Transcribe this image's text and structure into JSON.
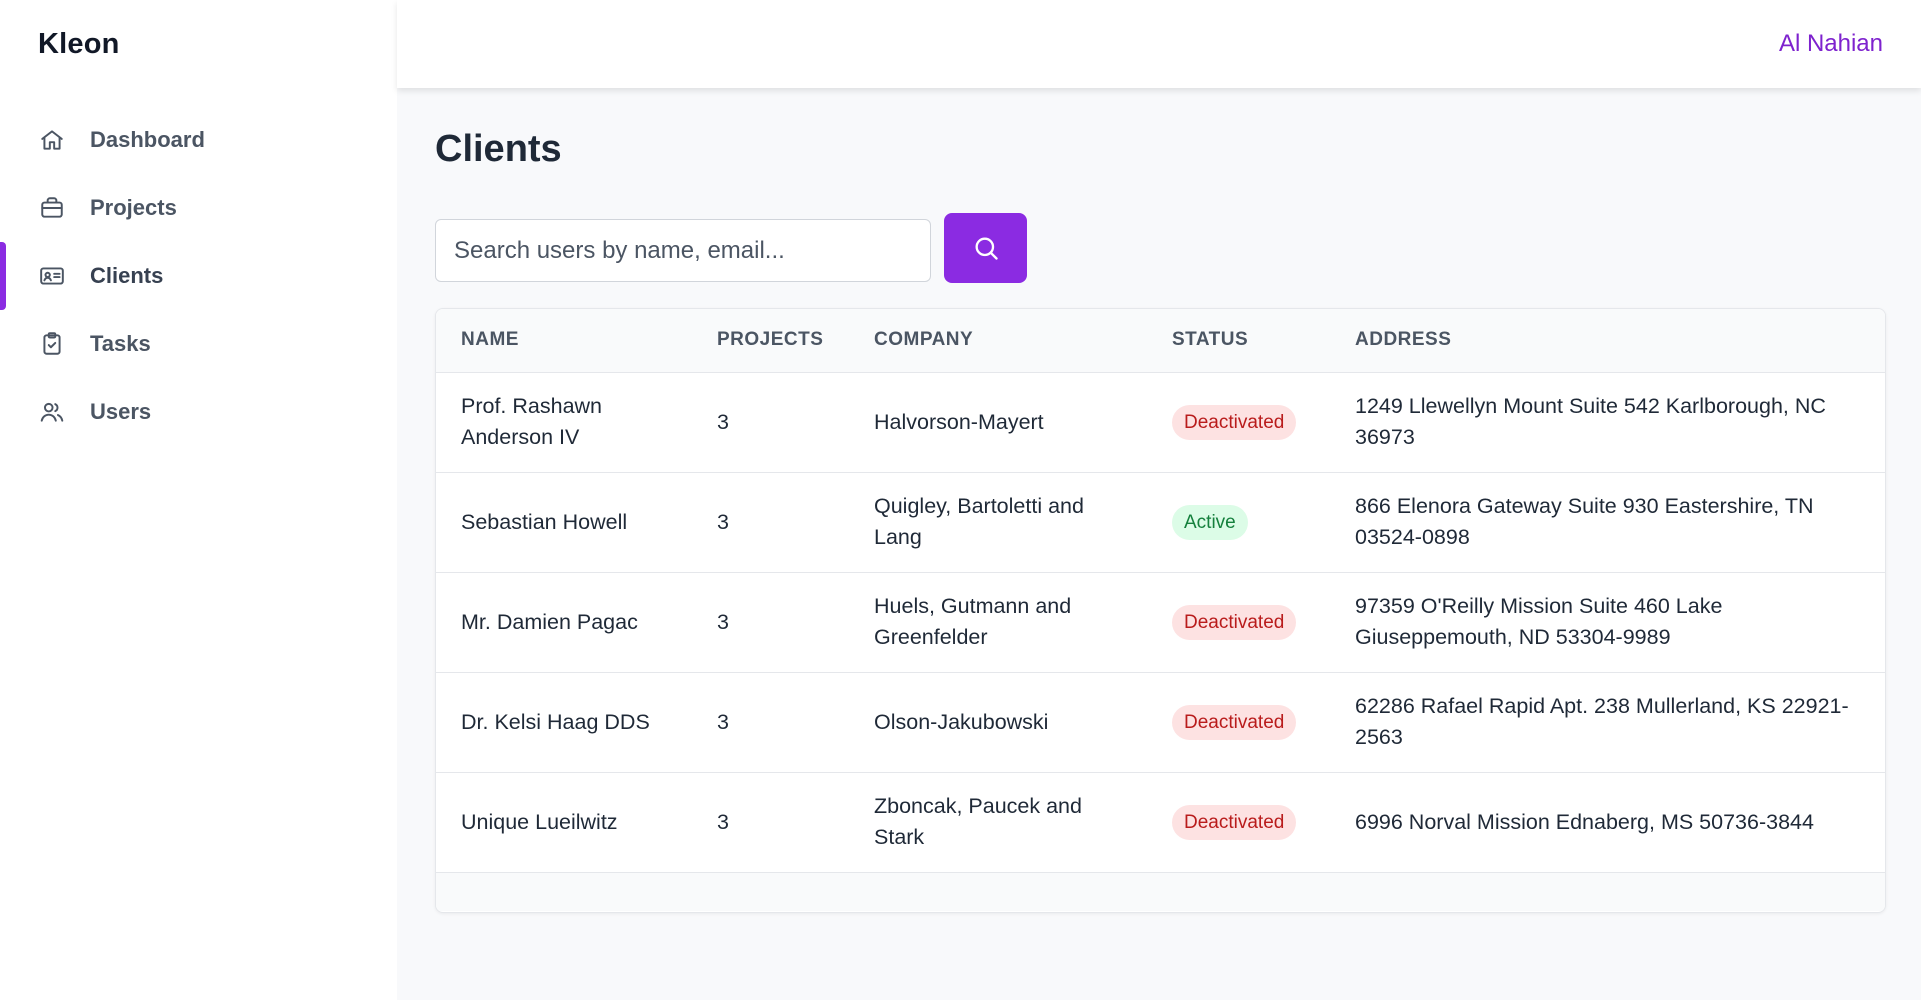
{
  "app": {
    "brand": "Kleon"
  },
  "header": {
    "user_name": "Al Nahian"
  },
  "sidebar": {
    "items": [
      {
        "label": "Dashboard",
        "icon": "home-icon",
        "active": false
      },
      {
        "label": "Projects",
        "icon": "briefcase-icon",
        "active": false
      },
      {
        "label": "Clients",
        "icon": "id-card-icon",
        "active": true
      },
      {
        "label": "Tasks",
        "icon": "clipboard-check-icon",
        "active": false
      },
      {
        "label": "Users",
        "icon": "users-icon",
        "active": false
      }
    ]
  },
  "main": {
    "title": "Clients",
    "search": {
      "placeholder": "Search users by name, email...",
      "value": ""
    },
    "table": {
      "columns": [
        "NAME",
        "PROJECTS",
        "COMPANY",
        "STATUS",
        "ADDRESS"
      ],
      "rows": [
        {
          "name": "Prof. Rashawn Anderson IV",
          "projects": "3",
          "company": "Halvorson-Mayert",
          "status": "Deactivated",
          "address": "1249 Llewellyn Mount Suite 542 Karlborough, NC 36973"
        },
        {
          "name": "Sebastian Howell",
          "projects": "3",
          "company": "Quigley, Bartoletti and Lang",
          "status": "Active",
          "address": "866 Elenora Gateway Suite 930 Eastershire, TN 03524-0898"
        },
        {
          "name": "Mr. Damien Pagac",
          "projects": "3",
          "company": "Huels, Gutmann and Greenfelder",
          "status": "Deactivated",
          "address": "97359 O'Reilly Mission Suite 460 Lake Giuseppemouth, ND 53304-9989"
        },
        {
          "name": "Dr. Kelsi Haag DDS",
          "projects": "3",
          "company": "Olson-Jakubowski",
          "status": "Deactivated",
          "address": "62286 Rafael Rapid Apt. 238 Mullerland, KS 22921-2563"
        },
        {
          "name": "Unique Lueilwitz",
          "projects": "3",
          "company": "Zboncak, Paucek and Stark",
          "status": "Deactivated",
          "address": "6996 Norval Mission Ednaberg, MS 50736-3844"
        }
      ]
    }
  },
  "colors": {
    "accent": "#8b2be2",
    "user_name": "#7e22ce",
    "deactivated_bg": "#fde2e2",
    "deactivated_text": "#b91c1c",
    "active_bg": "#dcfce7",
    "active_text": "#15803d"
  }
}
